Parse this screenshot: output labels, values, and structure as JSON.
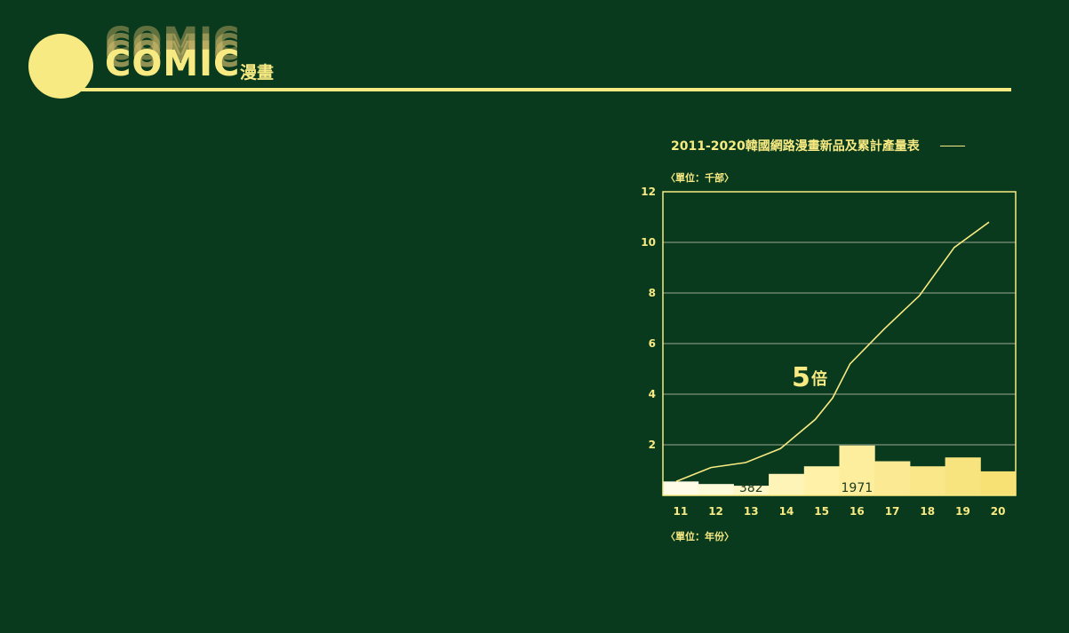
{
  "header": {
    "logo_text": "COMIC",
    "subtitle": "漫畫"
  },
  "colors": {
    "background": "#0a3a1e",
    "accent": "#f8ea82",
    "line": "#f8ea82",
    "grid": "#9aa890"
  },
  "chart_data": {
    "type": "bar",
    "title": "2011-2020韓國網路漫畫新品及累計產量表",
    "y_unit_label": "〈單位：千部〉",
    "x_unit_label": "〈單位：年份〉",
    "categories": [
      "11",
      "12",
      "13",
      "14",
      "15",
      "16",
      "17",
      "18",
      "19",
      "20"
    ],
    "ylim": [
      0,
      12
    ],
    "yticks": [
      2,
      4,
      6,
      8,
      10,
      12
    ],
    "grid": true,
    "series": [
      {
        "type": "bar",
        "values": [
          0.55,
          0.45,
          0.382,
          0.85,
          1.15,
          1.971,
          1.35,
          1.15,
          1.5,
          0.95
        ],
        "colors": [
          "#fffbe8",
          "#fffad9",
          "#fff7c8",
          "#fff4b7",
          "#fff1a8",
          "#fdee9d",
          "#fbe993",
          "#f9e789",
          "#f8e47f",
          "#f7e175"
        ]
      },
      {
        "type": "line",
        "values": [
          0.55,
          1.1,
          1.3,
          1.85,
          3.0,
          3.85,
          5.2,
          6.6,
          7.9,
          9.8,
          10.8
        ],
        "x": [
          0,
          1,
          2,
          3,
          4,
          4.5,
          5,
          6,
          7,
          8,
          9
        ]
      }
    ],
    "bar_labels": [
      {
        "index": 2,
        "text": "382"
      },
      {
        "index": 5,
        "text": "1971"
      }
    ],
    "annotation": {
      "number": "5",
      "unit": "倍"
    }
  }
}
